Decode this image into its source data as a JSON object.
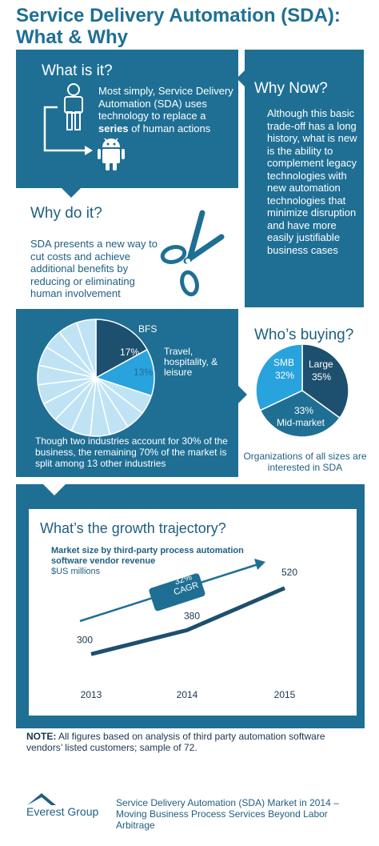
{
  "title": "Service Delivery Automation (SDA): What & Why",
  "what": {
    "heading": "What is it?",
    "text_pre": "Most simply, Service Delivery Automation (SDA) uses technology to replace a ",
    "text_bold": "series",
    "text_post": " of human actions",
    "person_icon": "person-icon",
    "robot_icon": "android-robot-icon"
  },
  "why_now": {
    "heading": "Why Now?",
    "text": "Although this basic trade-off has a long history, what is new is the ability to complement legacy technologies with new automation technologies that minimize disruption and have more easily justifiable business cases"
  },
  "why_do": {
    "heading": "Why do it?",
    "text": "SDA presents a new way to cut costs and achieve additional benefits by reducing or eliminating human involvement",
    "icon": "scissors-icon"
  },
  "industries": {
    "bfs_label": "BFS",
    "bfs_value": "17%",
    "travel_label": "Travel, hospitality, & leisure",
    "travel_value": "13%",
    "caption": "Though two industries account for 30% of the business, the remaining 70% of the market is split among 13 other industries",
    "other_slice_count": 13
  },
  "buyers": {
    "heading": "Who’s buying?",
    "smb_label": "SMB",
    "smb_value": "32%",
    "large_label": "Large",
    "large_value": "35%",
    "mid_value": "33%",
    "mid_label": "Mid-market",
    "caption": "Organizations of all sizes are interested in SDA"
  },
  "growth": {
    "heading": "What’s the growth trajectory?",
    "subtitle": "Market size by third-party process automation software vendor revenue",
    "units": "$US millions",
    "cagr_value": "32%",
    "cagr_label": "CAGR"
  },
  "chart_data": {
    "type": "line",
    "x": [
      "2013",
      "2014",
      "2015"
    ],
    "series": [
      {
        "values": [
          300,
          380,
          520
        ]
      }
    ],
    "title": "Market size by third-party process automation software vendor revenue",
    "ylabel": "$US millions",
    "annotation": "32% CAGR"
  },
  "note": {
    "bold": "NOTE:",
    "text": " All figures based on analysis of third party automation software vendors’ listed customers; sample of 72."
  },
  "footer": {
    "logo_text": "Everest Group",
    "citation": "Service Delivery Automation (SDA) Market in 2014 – Moving Business Process Services Beyond Labor Arbitrage"
  },
  "colors": {
    "dark_blue": "#1f6f94",
    "navy": "#1d4f6e",
    "light_blue": "#29a3dd",
    "pale_blue": "#bfe3f4"
  }
}
